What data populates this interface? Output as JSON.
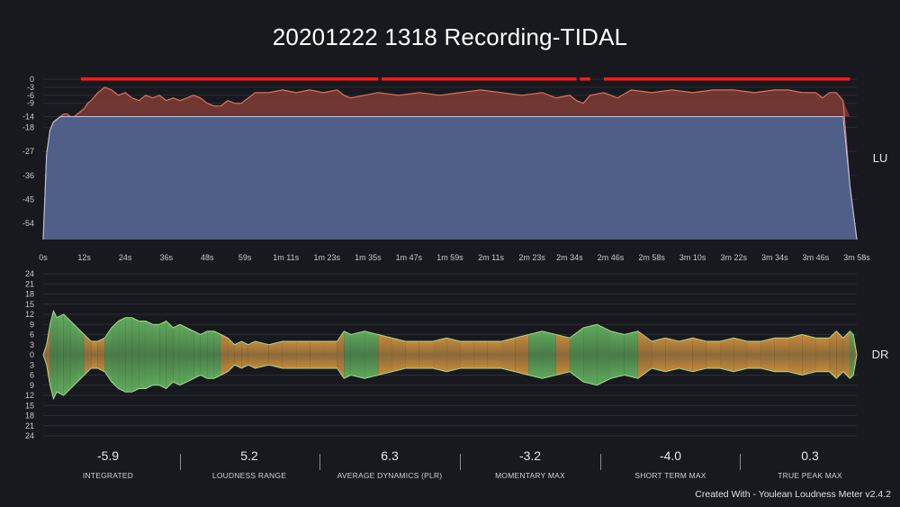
{
  "title": "20201222 1318 Recording-TIDAL",
  "footer": "Created With - Youlean Loudness Meter v2.4.2",
  "colors": {
    "background": "#17191e",
    "loudness_fill": "#4f5f88",
    "loudness_line": "#b8c6f0",
    "over_target_fill": "#7a3a33",
    "over_target_line": "#e0725e",
    "true_peak_marker": "#ff1a1a",
    "target_tick": "#e6b45a",
    "dynamics_low": "#5faa5c",
    "dynamics_high": "#c98a3a"
  },
  "chart_data": [
    {
      "type": "area",
      "name": "loudness",
      "side_label": "LU",
      "y_ticks": [
        "0",
        "-3",
        "-6",
        "-9",
        "-14",
        "-18",
        "-27",
        "-36",
        "-45",
        "-54"
      ],
      "y_tick_values": [
        0,
        -3,
        -6,
        -9,
        -14,
        -18,
        -27,
        -36,
        -45,
        -54
      ],
      "target": -14,
      "ylim": [
        -60,
        0
      ],
      "x_ticks": [
        "0s",
        "12s",
        "24s",
        "36s",
        "48s",
        "59s",
        "1m 11s",
        "1m 23s",
        "1m 35s",
        "1m 47s",
        "1m 59s",
        "2m 11s",
        "2m 23s",
        "2m 34s",
        "2m 46s",
        "2m 58s",
        "3m 10s",
        "3m 22s",
        "3m 34s",
        "3m 46s",
        "3m 58s"
      ],
      "x_tick_values": [
        0,
        12,
        24,
        36,
        48,
        59,
        71,
        83,
        95,
        107,
        119,
        131,
        143,
        154,
        166,
        178,
        190,
        202,
        214,
        226,
        238
      ],
      "xlim": [
        0,
        238
      ],
      "x": [
        0,
        1,
        2,
        3,
        4,
        5,
        6,
        7,
        8,
        9,
        10,
        11,
        12,
        13,
        14,
        16,
        18,
        20,
        22,
        24,
        26,
        28,
        30,
        32,
        34,
        36,
        38,
        40,
        42,
        44,
        46,
        48,
        50,
        52,
        54,
        56,
        58,
        62,
        66,
        70,
        74,
        78,
        82,
        86,
        88,
        90,
        94,
        98,
        104,
        110,
        116,
        122,
        128,
        134,
        140,
        146,
        150,
        154,
        156,
        158,
        160,
        164,
        168,
        172,
        178,
        184,
        190,
        196,
        202,
        208,
        214,
        218,
        222,
        226,
        228,
        230,
        232,
        234,
        236,
        238
      ],
      "y": [
        -60,
        -28,
        -19,
        -16,
        -15,
        -14,
        -13,
        -13,
        -14,
        -14,
        -13,
        -12,
        -11,
        -9,
        -8,
        -5,
        -3,
        -4,
        -6,
        -5,
        -7,
        -8,
        -6,
        -7,
        -6,
        -8,
        -7,
        -8,
        -7,
        -6,
        -7,
        -9,
        -10,
        -10,
        -8,
        -9,
        -9,
        -5,
        -5,
        -4,
        -5,
        -4,
        -5,
        -4,
        -6,
        -7,
        -6,
        -5,
        -6,
        -5,
        -6,
        -5,
        -4,
        -5,
        -6,
        -5,
        -7,
        -6,
        -8,
        -9,
        -6,
        -5,
        -7,
        -4,
        -5,
        -4,
        -5,
        -4,
        -4,
        -5,
        -4,
        -4,
        -5,
        -5,
        -7,
        -5,
        -5,
        -8,
        -40,
        -60
      ],
      "true_peak_segments": [
        [
          11,
          98
        ],
        [
          99,
          156
        ],
        [
          157,
          160
        ],
        [
          164,
          236
        ]
      ]
    },
    {
      "type": "area",
      "name": "dynamics",
      "side_label": "DR",
      "y_ticks": [
        "24",
        "21",
        "18",
        "15",
        "12",
        "9",
        "6",
        "3",
        "0",
        "3",
        "6",
        "9",
        "12",
        "15",
        "18",
        "21",
        "24"
      ],
      "y_tick_values": [
        24,
        21,
        18,
        15,
        12,
        9,
        6,
        3,
        0,
        -3,
        -6,
        -9,
        -12,
        -15,
        -18,
        -21,
        -24
      ],
      "ylim": [
        -24,
        24
      ],
      "xlim": [
        0,
        238
      ],
      "x": [
        0,
        1,
        2,
        3,
        4,
        6,
        8,
        10,
        12,
        14,
        16,
        18,
        20,
        22,
        24,
        26,
        28,
        30,
        32,
        34,
        36,
        38,
        40,
        42,
        44,
        46,
        48,
        50,
        52,
        54,
        56,
        58,
        60,
        62,
        66,
        70,
        74,
        78,
        82,
        86,
        88,
        90,
        94,
        98,
        102,
        106,
        110,
        114,
        118,
        122,
        126,
        130,
        134,
        138,
        142,
        146,
        150,
        154,
        158,
        162,
        166,
        170,
        174,
        178,
        182,
        186,
        190,
        194,
        198,
        202,
        206,
        210,
        214,
        218,
        222,
        226,
        230,
        232,
        234,
        236,
        237,
        238
      ],
      "amplitude": [
        0,
        3,
        9,
        13,
        11,
        12,
        10,
        8,
        6,
        4,
        4,
        5,
        8,
        10,
        11,
        11,
        10,
        10,
        9,
        9,
        10,
        8,
        9,
        8,
        7,
        6,
        7,
        7,
        6,
        5,
        3,
        4,
        3,
        4,
        3,
        4,
        4,
        4,
        4,
        4,
        7,
        6,
        7,
        6,
        5,
        4,
        4,
        4,
        5,
        4,
        4,
        4,
        4,
        5,
        6,
        7,
        6,
        5,
        8,
        9,
        7,
        6,
        7,
        4,
        5,
        4,
        5,
        4,
        4,
        5,
        4,
        4,
        5,
        5,
        6,
        5,
        5,
        7,
        5,
        7,
        6,
        0
      ]
    }
  ],
  "stats": [
    {
      "value": "-5.9",
      "label": "INTEGRATED"
    },
    {
      "value": "5.2",
      "label": "LOUDNESS RANGE"
    },
    {
      "value": "6.3",
      "label": "AVERAGE DYNAMICS (PLR)"
    },
    {
      "value": "-3.2",
      "label": "MOMENTARY MAX"
    },
    {
      "value": "-4.0",
      "label": "SHORT TERM MAX"
    },
    {
      "value": "0.3",
      "label": "TRUE PEAK MAX"
    }
  ]
}
